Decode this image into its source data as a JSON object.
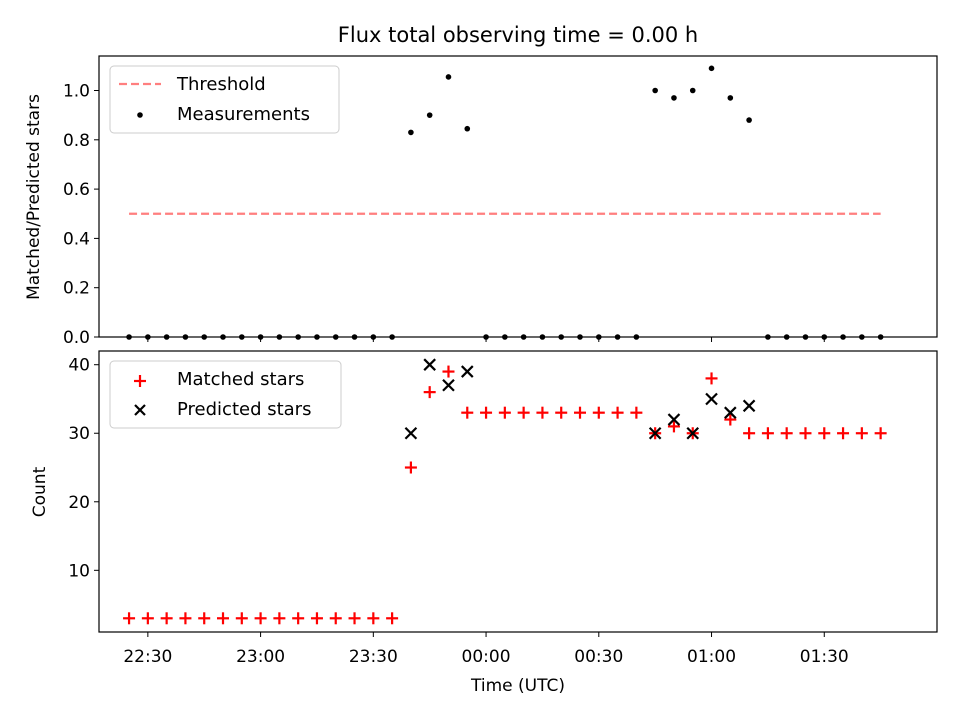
{
  "chart_data": [
    {
      "type": "scatter",
      "title": "Flux total observing time = 0.00 h",
      "xlabel": "",
      "ylabel": "Matched/Predicted stars",
      "ylim": [
        0,
        1.14
      ],
      "yticks": [
        0.0,
        0.2,
        0.4,
        0.6,
        0.8,
        1.0
      ],
      "ytick_labels": [
        "0.0",
        "0.2",
        "0.4",
        "0.6",
        "0.8",
        "1.0"
      ],
      "legend": {
        "placement": "top-left",
        "entries": [
          "Threshold",
          "Measurements"
        ]
      },
      "series": [
        {
          "name": "Threshold",
          "style": "dashed-line",
          "color": "#ff7f7f",
          "x": [
            "22:25",
            "01:45"
          ],
          "values": [
            0.5,
            0.5
          ]
        },
        {
          "name": "Measurements",
          "style": "dot",
          "color": "#000000",
          "x": [
            "22:25",
            "22:30",
            "22:35",
            "22:40",
            "22:45",
            "22:50",
            "22:55",
            "23:00",
            "23:05",
            "23:10",
            "23:15",
            "23:20",
            "23:25",
            "23:30",
            "23:35",
            "23:40",
            "23:45",
            "23:50",
            "23:55",
            "00:00",
            "00:05",
            "00:10",
            "00:15",
            "00:20",
            "00:25",
            "00:30",
            "00:35",
            "00:40",
            "00:45",
            "00:50",
            "00:55",
            "01:00",
            "01:05",
            "01:10",
            "01:15",
            "01:20",
            "01:25",
            "01:30",
            "01:35",
            "01:40",
            "01:45"
          ],
          "values": [
            0,
            0,
            0,
            0,
            0,
            0,
            0,
            0,
            0,
            0,
            0,
            0,
            0,
            0,
            0,
            0.83,
            0.9,
            1.055,
            0.845,
            0,
            0,
            0,
            0,
            0,
            0,
            0,
            0,
            0,
            1.0,
            0.97,
            1.0,
            1.09,
            0.97,
            0.88,
            0,
            0,
            0,
            0,
            0,
            0,
            0
          ]
        }
      ]
    },
    {
      "type": "scatter",
      "title": "",
      "xlabel": "Time (UTC)",
      "ylabel": "Count",
      "ylim": [
        1,
        42
      ],
      "yticks": [
        10,
        20,
        30,
        40
      ],
      "ytick_labels": [
        "10",
        "20",
        "30",
        "40"
      ],
      "xticks": [
        "22:30",
        "23:00",
        "23:30",
        "00:00",
        "00:30",
        "01:00",
        "01:30"
      ],
      "xlim": [
        "22:17",
        "02:00"
      ],
      "legend": {
        "placement": "top-left",
        "entries": [
          "Matched stars",
          "Predicted stars"
        ]
      },
      "series": [
        {
          "name": "Matched stars",
          "style": "plus",
          "color": "#ff0000",
          "x": [
            "22:25",
            "22:30",
            "22:35",
            "22:40",
            "22:45",
            "22:50",
            "22:55",
            "23:00",
            "23:05",
            "23:10",
            "23:15",
            "23:20",
            "23:25",
            "23:30",
            "23:35",
            "23:40",
            "23:45",
            "23:50",
            "23:55",
            "00:00",
            "00:05",
            "00:10",
            "00:15",
            "00:20",
            "00:25",
            "00:30",
            "00:35",
            "00:40",
            "00:45",
            "00:50",
            "00:55",
            "01:00",
            "01:05",
            "01:10",
            "01:15",
            "01:20",
            "01:25",
            "01:30",
            "01:35",
            "01:40",
            "01:45"
          ],
          "values": [
            3,
            3,
            3,
            3,
            3,
            3,
            3,
            3,
            3,
            3,
            3,
            3,
            3,
            3,
            3,
            25,
            36,
            39,
            33,
            33,
            33,
            33,
            33,
            33,
            33,
            33,
            33,
            33,
            30,
            31,
            30,
            38,
            32,
            30,
            30,
            30,
            30,
            30,
            30,
            30,
            30
          ]
        },
        {
          "name": "Predicted stars",
          "style": "x",
          "color": "#000000",
          "x": [
            "23:40",
            "23:45",
            "23:50",
            "23:55",
            "00:45",
            "00:50",
            "00:55",
            "01:00",
            "01:05",
            "01:10"
          ],
          "values": [
            30,
            40,
            37,
            39,
            30,
            32,
            30,
            35,
            33,
            34
          ]
        }
      ]
    }
  ]
}
